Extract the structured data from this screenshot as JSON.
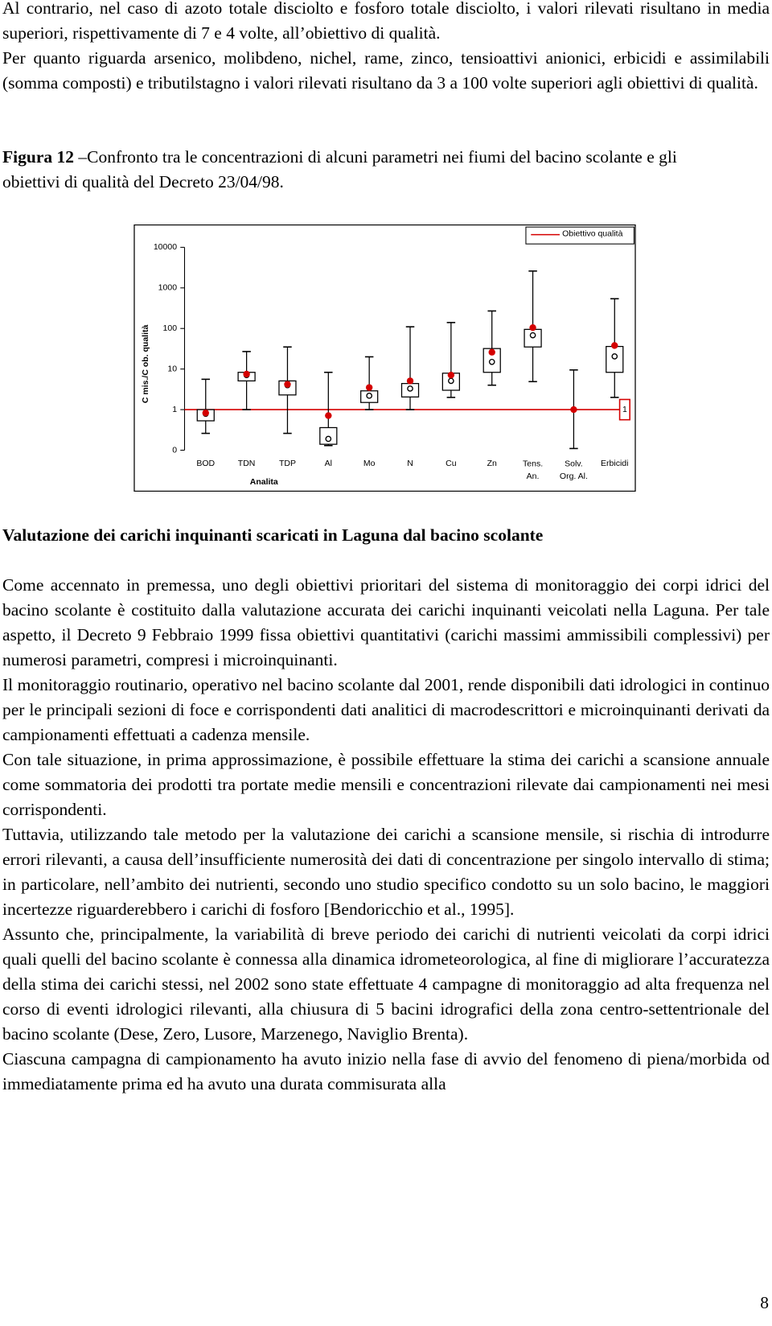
{
  "paragraphs_top": [
    "Al contrario, nel caso di azoto totale disciolto e fosforo totale disciolto, i valori rilevati risultano in media superiori, rispettivamente di 7 e 4 volte,  all’obiettivo di qualità.",
    "Per quanto riguarda arsenico, molibdeno, nichel, rame, zinco, tensioattivi anionici, erbicidi e assimilabili (somma composti) e tributilstagno i valori rilevati risultano da 3 a 100 volte superiori agli obiettivi di qualità."
  ],
  "figure": {
    "label": "Figura 12",
    "caption": "–Confronto tra le concentrazioni di alcuni parametri nei fiumi del bacino scolante e gli obiettivi di qualità del Decreto 23/04/98."
  },
  "chart_data": {
    "type": "box",
    "x_label": "Analita",
    "y_label": "C mis./C ob. qualità",
    "categories": [
      "BOD",
      "TDN",
      "TDP",
      "Al",
      "Mo",
      "N",
      "Cu",
      "Zn",
      "Tens. An.",
      "Solv. Org. Al.",
      "Erbicidi"
    ],
    "min": [
      0.26,
      1,
      0.26,
      0.13,
      1,
      1,
      2,
      4,
      4.9,
      0.11,
      2
    ],
    "q1": [
      0.53,
      5.1,
      2.3,
      0.14,
      1.5,
      2.05,
      3,
      8.3,
      35,
      1,
      8.3
    ],
    "median": [
      0.79,
      7.1,
      4,
      0.19,
      2.2,
      3.3,
      5.1,
      15,
      68,
      1,
      20.5
    ],
    "q3": [
      1,
      8.3,
      5.1,
      0.36,
      2.9,
      4.4,
      7.9,
      32,
      95,
      1,
      36
    ],
    "max": [
      5.6,
      27,
      35,
      8.3,
      20,
      110,
      140,
      270,
      2600,
      9.5,
      540
    ],
    "mean": [
      0.83,
      7.5,
      4.2,
      0.71,
      3.5,
      5.1,
      7.1,
      26,
      105,
      1,
      38
    ],
    "mean_color": "#d40000",
    "reference": {
      "name": "Obiettivo qualità",
      "value": 1,
      "color": "#d40000"
    },
    "annotation": "1",
    "legend": "upper right",
    "log_y": true,
    "ylim": [
      0.1,
      10000
    ],
    "yticks": [
      {
        "value": 0.1,
        "label": "0"
      },
      1,
      10,
      100,
      1000,
      10000
    ]
  },
  "section_heading": "Valutazione dei carichi inquinanti scaricati in Laguna dal bacino scolante",
  "paragraphs": [
    "Come accennato in premessa, uno degli obiettivi prioritari del sistema di monitoraggio dei corpi idrici del bacino scolante è costituito dalla valutazione accurata dei carichi inquinanti veicolati nella Laguna. Per tale aspetto, il Decreto 9 Febbraio 1999 fissa obiettivi quantitativi (carichi massimi ammissibili complessivi) per numerosi parametri, compresi i microinquinanti.",
    "Il monitoraggio routinario, operativo nel bacino scolante dal 2001, rende disponibili dati idrologici in continuo per le principali sezioni di foce e corrispondenti dati analitici di macrodescrittori e microinquinanti derivati da campionamenti effettuati a cadenza mensile.",
    "Con tale situazione, in prima approssimazione, è possibile effettuare la stima dei carichi a scansione annuale come sommatoria dei prodotti tra portate medie mensili e concentrazioni rilevate dai campionamenti nei mesi corrispondenti.",
    "Tuttavia, utilizzando tale metodo per la valutazione dei carichi a scansione mensile, si rischia di introdurre errori rilevanti, a causa dell’insufficiente numerosità dei dati di concentrazione per singolo intervallo di stima; in particolare, nell’ambito dei nutrienti, secondo uno studio specifico condotto su un solo bacino, le maggiori incertezze riguarderebbero i carichi di fosforo [Bendoricchio et al., 1995].",
    "Assunto che, principalmente, la variabilità di breve periodo dei carichi di nutrienti veicolati da corpi idrici quali quelli del bacino scolante è connessa alla dinamica idrometeorologica, al fine di migliorare l’accuratezza della stima dei carichi stessi, nel 2002 sono state effettuate 4 campagne di monitoraggio ad alta frequenza nel corso di eventi idrologici rilevanti, alla chiusura di 5 bacini idrografici della zona centro-settentrionale del bacino scolante (Dese, Zero, Lusore, Marzenego, Naviglio Brenta).",
    "Ciascuna campagna di campionamento ha avuto inizio nella fase di avvio del fenomeno di piena/morbida od immediatamente prima ed ha avuto una durata commisurata alla"
  ],
  "page_number": "8"
}
